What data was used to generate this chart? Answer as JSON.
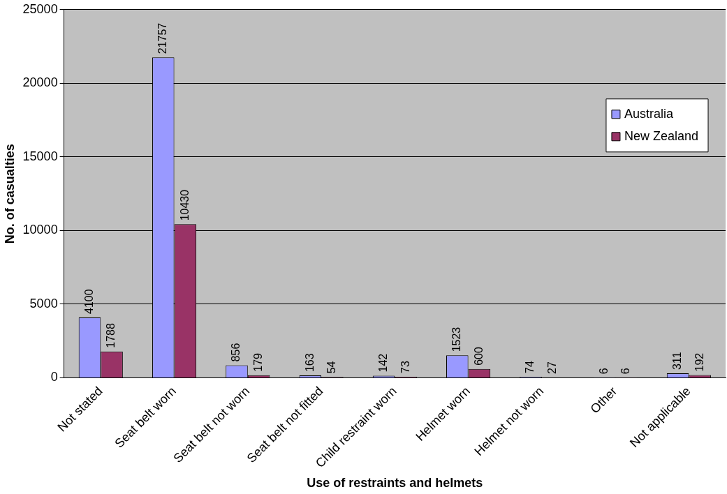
{
  "chart_data": {
    "type": "bar",
    "xlabel": "Use of restraints and helmets",
    "ylabel": "No. of casualties",
    "categories": [
      "Not stated",
      "Seat belt worn",
      "Seat belt not worn",
      "Seat belt not fitted",
      "Child restraint worn",
      "Helmet worn",
      "Helmet not worn",
      "Other",
      "Not applicable"
    ],
    "series": [
      {
        "name": "Australia",
        "color": "#9999ff",
        "values": [
          4100,
          21757,
          856,
          163,
          142,
          1523,
          74,
          6,
          311
        ]
      },
      {
        "name": "New Zealand",
        "color": "#993366",
        "values": [
          1788,
          10430,
          179,
          54,
          73,
          600,
          27,
          6,
          192
        ]
      }
    ],
    "ylim": [
      0,
      25000
    ],
    "yticks": [
      0,
      5000,
      10000,
      15000,
      20000,
      25000
    ],
    "grid": "y",
    "legend": "top right",
    "data_labels": true
  }
}
